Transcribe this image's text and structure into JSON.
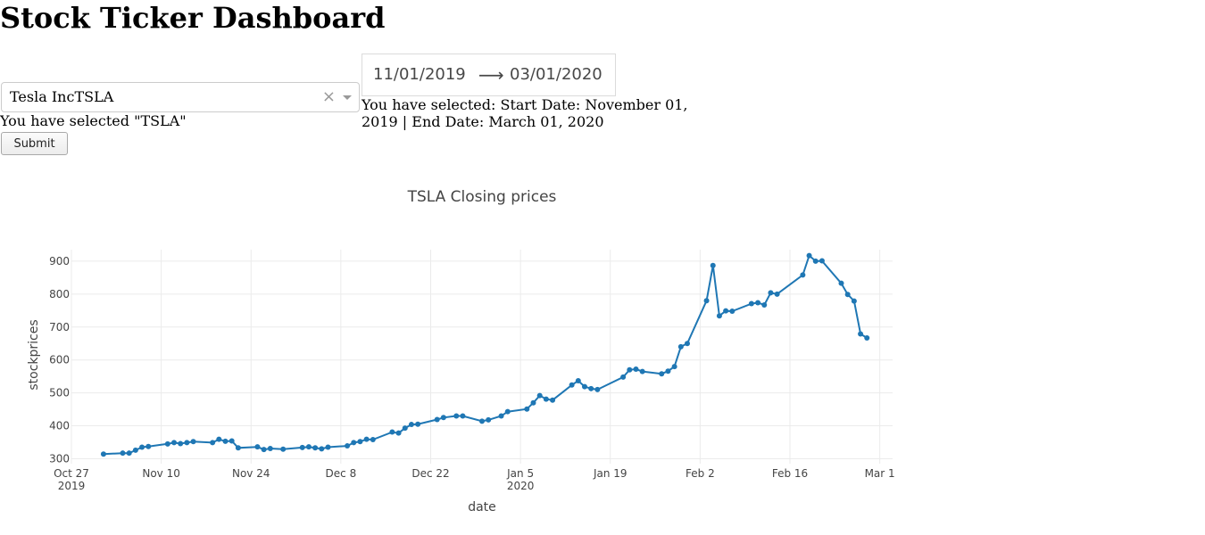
{
  "header": {
    "title": "Stock Ticker Dashboard"
  },
  "ticker": {
    "selected_label": "Tesla IncTSLA",
    "clear_glyph": "×",
    "selected_message": "You have selected \"TSLA\""
  },
  "date_range": {
    "start": "11/01/2019",
    "end": "03/01/2020",
    "arrow_glyph": "⟶",
    "selected_message": "You have selected: Start Date: November 01, 2019 | End Date: March 01, 2020"
  },
  "submit": {
    "label": "Submit"
  },
  "chart_data": {
    "type": "line",
    "title": "TSLA  Closing prices",
    "xlabel": "date",
    "ylabel": "stockprices",
    "ylim": [
      285,
      935
    ],
    "xlim": [
      "2019-10-27",
      "2020-03-03"
    ],
    "grid": true,
    "color": "#1f77b4",
    "x_ticks": [
      {
        "date": "2019-10-27",
        "label": "Oct 27",
        "sub": "2019"
      },
      {
        "date": "2019-11-10",
        "label": "Nov 10",
        "sub": ""
      },
      {
        "date": "2019-11-24",
        "label": "Nov 24",
        "sub": ""
      },
      {
        "date": "2019-12-08",
        "label": "Dec 8",
        "sub": ""
      },
      {
        "date": "2019-12-22",
        "label": "Dec 22",
        "sub": ""
      },
      {
        "date": "2020-01-05",
        "label": "Jan 5",
        "sub": "2020"
      },
      {
        "date": "2020-01-19",
        "label": "Jan 19",
        "sub": ""
      },
      {
        "date": "2020-02-02",
        "label": "Feb 2",
        "sub": ""
      },
      {
        "date": "2020-02-16",
        "label": "Feb 16",
        "sub": ""
      },
      {
        "date": "2020-03-01",
        "label": "Mar 1",
        "sub": ""
      }
    ],
    "y_ticks": [
      300,
      400,
      500,
      600,
      700,
      800,
      900
    ],
    "series": [
      {
        "points": [
          [
            "2019-11-01",
            314
          ],
          [
            "2019-11-04",
            317
          ],
          [
            "2019-11-05",
            317
          ],
          [
            "2019-11-06",
            326
          ],
          [
            "2019-11-07",
            335
          ],
          [
            "2019-11-08",
            337
          ],
          [
            "2019-11-11",
            345
          ],
          [
            "2019-11-12",
            349
          ],
          [
            "2019-11-13",
            346
          ],
          [
            "2019-11-14",
            349
          ],
          [
            "2019-11-15",
            352
          ],
          [
            "2019-11-18",
            349
          ],
          [
            "2019-11-19",
            359
          ],
          [
            "2019-11-20",
            353
          ],
          [
            "2019-11-21",
            354
          ],
          [
            "2019-11-22",
            333
          ],
          [
            "2019-11-25",
            336
          ],
          [
            "2019-11-26",
            328
          ],
          [
            "2019-11-27",
            331
          ],
          [
            "2019-11-29",
            329
          ],
          [
            "2019-12-02",
            334
          ],
          [
            "2019-12-03",
            336
          ],
          [
            "2019-12-04",
            333
          ],
          [
            "2019-12-05",
            330
          ],
          [
            "2019-12-06",
            335
          ],
          [
            "2019-12-09",
            339
          ],
          [
            "2019-12-10",
            349
          ],
          [
            "2019-12-11",
            352
          ],
          [
            "2019-12-12",
            359
          ],
          [
            "2019-12-13",
            358
          ],
          [
            "2019-12-16",
            381
          ],
          [
            "2019-12-17",
            378
          ],
          [
            "2019-12-18",
            393
          ],
          [
            "2019-12-19",
            404
          ],
          [
            "2019-12-20",
            405
          ],
          [
            "2019-12-23",
            419
          ],
          [
            "2019-12-24",
            425
          ],
          [
            "2019-12-26",
            430
          ],
          [
            "2019-12-27",
            430
          ],
          [
            "2019-12-30",
            414
          ],
          [
            "2019-12-31",
            418
          ],
          [
            "2020-01-02",
            430
          ],
          [
            "2020-01-03",
            443
          ],
          [
            "2020-01-06",
            451
          ],
          [
            "2020-01-07",
            470
          ],
          [
            "2020-01-08",
            492
          ],
          [
            "2020-01-09",
            481
          ],
          [
            "2020-01-10",
            478
          ],
          [
            "2020-01-13",
            524
          ],
          [
            "2020-01-14",
            537
          ],
          [
            "2020-01-15",
            519
          ],
          [
            "2020-01-16",
            513
          ],
          [
            "2020-01-17",
            510
          ],
          [
            "2020-01-21",
            548
          ],
          [
            "2020-01-22",
            570
          ],
          [
            "2020-01-23",
            572
          ],
          [
            "2020-01-24",
            565
          ],
          [
            "2020-01-27",
            558
          ],
          [
            "2020-01-28",
            566
          ],
          [
            "2020-01-29",
            580
          ],
          [
            "2020-01-30",
            640
          ],
          [
            "2020-01-31",
            650
          ],
          [
            "2020-02-03",
            780
          ],
          [
            "2020-02-04",
            887
          ],
          [
            "2020-02-05",
            734
          ],
          [
            "2020-02-06",
            749
          ],
          [
            "2020-02-07",
            748
          ],
          [
            "2020-02-10",
            771
          ],
          [
            "2020-02-11",
            774
          ],
          [
            "2020-02-12",
            767
          ],
          [
            "2020-02-13",
            804
          ],
          [
            "2020-02-14",
            800
          ],
          [
            "2020-02-18",
            858
          ],
          [
            "2020-02-19",
            917
          ],
          [
            "2020-02-20",
            900
          ],
          [
            "2020-02-21",
            901
          ],
          [
            "2020-02-24",
            833
          ],
          [
            "2020-02-25",
            799
          ],
          [
            "2020-02-26",
            779
          ],
          [
            "2020-02-27",
            679
          ],
          [
            "2020-02-28",
            667
          ]
        ]
      }
    ]
  }
}
